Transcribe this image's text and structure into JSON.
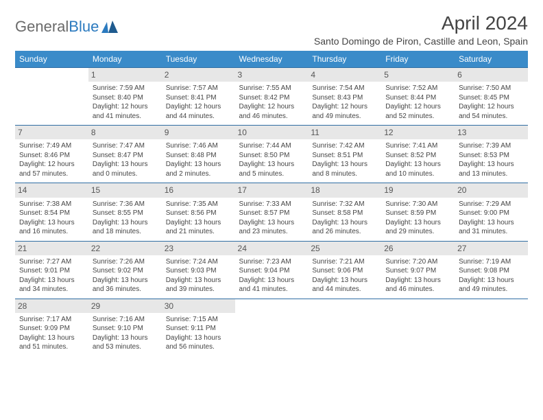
{
  "brand": {
    "part1": "General",
    "part2": "Blue"
  },
  "title": "April 2024",
  "location": "Santo Domingo de Piron, Castille and Leon, Spain",
  "colors": {
    "header_bg": "#3a8bc9",
    "header_text": "#ffffff",
    "border": "#2f6da3",
    "daynum_bg": "#e7e7e7",
    "text": "#444444"
  },
  "weekdays": [
    "Sunday",
    "Monday",
    "Tuesday",
    "Wednesday",
    "Thursday",
    "Friday",
    "Saturday"
  ],
  "weeks": [
    [
      null,
      {
        "n": "1",
        "sr": "Sunrise: 7:59 AM",
        "ss": "Sunset: 8:40 PM",
        "d1": "Daylight: 12 hours",
        "d2": "and 41 minutes."
      },
      {
        "n": "2",
        "sr": "Sunrise: 7:57 AM",
        "ss": "Sunset: 8:41 PM",
        "d1": "Daylight: 12 hours",
        "d2": "and 44 minutes."
      },
      {
        "n": "3",
        "sr": "Sunrise: 7:55 AM",
        "ss": "Sunset: 8:42 PM",
        "d1": "Daylight: 12 hours",
        "d2": "and 46 minutes."
      },
      {
        "n": "4",
        "sr": "Sunrise: 7:54 AM",
        "ss": "Sunset: 8:43 PM",
        "d1": "Daylight: 12 hours",
        "d2": "and 49 minutes."
      },
      {
        "n": "5",
        "sr": "Sunrise: 7:52 AM",
        "ss": "Sunset: 8:44 PM",
        "d1": "Daylight: 12 hours",
        "d2": "and 52 minutes."
      },
      {
        "n": "6",
        "sr": "Sunrise: 7:50 AM",
        "ss": "Sunset: 8:45 PM",
        "d1": "Daylight: 12 hours",
        "d2": "and 54 minutes."
      }
    ],
    [
      {
        "n": "7",
        "sr": "Sunrise: 7:49 AM",
        "ss": "Sunset: 8:46 PM",
        "d1": "Daylight: 12 hours",
        "d2": "and 57 minutes."
      },
      {
        "n": "8",
        "sr": "Sunrise: 7:47 AM",
        "ss": "Sunset: 8:47 PM",
        "d1": "Daylight: 13 hours",
        "d2": "and 0 minutes."
      },
      {
        "n": "9",
        "sr": "Sunrise: 7:46 AM",
        "ss": "Sunset: 8:48 PM",
        "d1": "Daylight: 13 hours",
        "d2": "and 2 minutes."
      },
      {
        "n": "10",
        "sr": "Sunrise: 7:44 AM",
        "ss": "Sunset: 8:50 PM",
        "d1": "Daylight: 13 hours",
        "d2": "and 5 minutes."
      },
      {
        "n": "11",
        "sr": "Sunrise: 7:42 AM",
        "ss": "Sunset: 8:51 PM",
        "d1": "Daylight: 13 hours",
        "d2": "and 8 minutes."
      },
      {
        "n": "12",
        "sr": "Sunrise: 7:41 AM",
        "ss": "Sunset: 8:52 PM",
        "d1": "Daylight: 13 hours",
        "d2": "and 10 minutes."
      },
      {
        "n": "13",
        "sr": "Sunrise: 7:39 AM",
        "ss": "Sunset: 8:53 PM",
        "d1": "Daylight: 13 hours",
        "d2": "and 13 minutes."
      }
    ],
    [
      {
        "n": "14",
        "sr": "Sunrise: 7:38 AM",
        "ss": "Sunset: 8:54 PM",
        "d1": "Daylight: 13 hours",
        "d2": "and 16 minutes."
      },
      {
        "n": "15",
        "sr": "Sunrise: 7:36 AM",
        "ss": "Sunset: 8:55 PM",
        "d1": "Daylight: 13 hours",
        "d2": "and 18 minutes."
      },
      {
        "n": "16",
        "sr": "Sunrise: 7:35 AM",
        "ss": "Sunset: 8:56 PM",
        "d1": "Daylight: 13 hours",
        "d2": "and 21 minutes."
      },
      {
        "n": "17",
        "sr": "Sunrise: 7:33 AM",
        "ss": "Sunset: 8:57 PM",
        "d1": "Daylight: 13 hours",
        "d2": "and 23 minutes."
      },
      {
        "n": "18",
        "sr": "Sunrise: 7:32 AM",
        "ss": "Sunset: 8:58 PM",
        "d1": "Daylight: 13 hours",
        "d2": "and 26 minutes."
      },
      {
        "n": "19",
        "sr": "Sunrise: 7:30 AM",
        "ss": "Sunset: 8:59 PM",
        "d1": "Daylight: 13 hours",
        "d2": "and 29 minutes."
      },
      {
        "n": "20",
        "sr": "Sunrise: 7:29 AM",
        "ss": "Sunset: 9:00 PM",
        "d1": "Daylight: 13 hours",
        "d2": "and 31 minutes."
      }
    ],
    [
      {
        "n": "21",
        "sr": "Sunrise: 7:27 AM",
        "ss": "Sunset: 9:01 PM",
        "d1": "Daylight: 13 hours",
        "d2": "and 34 minutes."
      },
      {
        "n": "22",
        "sr": "Sunrise: 7:26 AM",
        "ss": "Sunset: 9:02 PM",
        "d1": "Daylight: 13 hours",
        "d2": "and 36 minutes."
      },
      {
        "n": "23",
        "sr": "Sunrise: 7:24 AM",
        "ss": "Sunset: 9:03 PM",
        "d1": "Daylight: 13 hours",
        "d2": "and 39 minutes."
      },
      {
        "n": "24",
        "sr": "Sunrise: 7:23 AM",
        "ss": "Sunset: 9:04 PM",
        "d1": "Daylight: 13 hours",
        "d2": "and 41 minutes."
      },
      {
        "n": "25",
        "sr": "Sunrise: 7:21 AM",
        "ss": "Sunset: 9:06 PM",
        "d1": "Daylight: 13 hours",
        "d2": "and 44 minutes."
      },
      {
        "n": "26",
        "sr": "Sunrise: 7:20 AM",
        "ss": "Sunset: 9:07 PM",
        "d1": "Daylight: 13 hours",
        "d2": "and 46 minutes."
      },
      {
        "n": "27",
        "sr": "Sunrise: 7:19 AM",
        "ss": "Sunset: 9:08 PM",
        "d1": "Daylight: 13 hours",
        "d2": "and 49 minutes."
      }
    ],
    [
      {
        "n": "28",
        "sr": "Sunrise: 7:17 AM",
        "ss": "Sunset: 9:09 PM",
        "d1": "Daylight: 13 hours",
        "d2": "and 51 minutes."
      },
      {
        "n": "29",
        "sr": "Sunrise: 7:16 AM",
        "ss": "Sunset: 9:10 PM",
        "d1": "Daylight: 13 hours",
        "d2": "and 53 minutes."
      },
      {
        "n": "30",
        "sr": "Sunrise: 7:15 AM",
        "ss": "Sunset: 9:11 PM",
        "d1": "Daylight: 13 hours",
        "d2": "and 56 minutes."
      },
      null,
      null,
      null,
      null
    ]
  ]
}
